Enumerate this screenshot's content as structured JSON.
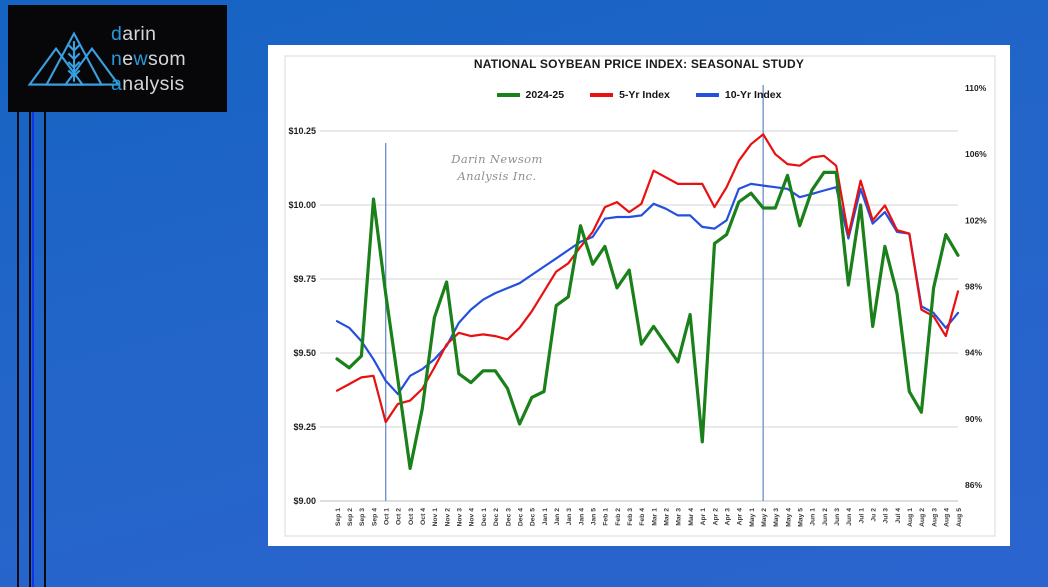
{
  "page": {
    "background_top_color": "#1563c2",
    "background_bottom_color": "#2b64ce",
    "accent_stripe_color": "#0d34ee"
  },
  "logo": {
    "highlight_color": "#2699d8",
    "text_color": "#d6d6d6",
    "mark": "mountain-wheat-triangles-icon",
    "lines": [
      {
        "segments": [
          {
            "t": "d",
            "hl": true
          },
          {
            "t": "arin",
            "hl": false
          }
        ]
      },
      {
        "segments": [
          {
            "t": "n",
            "hl": true
          },
          {
            "t": "e",
            "hl": false
          },
          {
            "t": "w",
            "hl": true
          },
          {
            "t": "som",
            "hl": false
          }
        ]
      },
      {
        "segments": [
          {
            "t": "a",
            "hl": true
          },
          {
            "t": "nalysis",
            "hl": false
          }
        ]
      }
    ]
  },
  "watermark": {
    "line1": "Darin Newsom",
    "line2": "Analysis Inc."
  },
  "chart_data": {
    "type": "line",
    "title": "NATIONAL SOYBEAN PRICE INDEX: SEASONAL STUDY",
    "legend_position": "top",
    "grid": "horizontal",
    "categories": [
      "Sep 1",
      "Sep 2",
      "Sep 3",
      "Sep 4",
      "Oct 1",
      "Oct 2",
      "Oct 3",
      "Oct 4",
      "Nov 1",
      "Nov 2",
      "Nov 3",
      "Nov 4",
      "Dec 1",
      "Dec 2",
      "Dec 3",
      "Dec 4",
      "Dec 5",
      "Jan 1",
      "Jan 2",
      "Jan 3",
      "Jan 4",
      "Jan 5",
      "Feb 1",
      "Feb 2",
      "Feb 3",
      "Feb 4",
      "Mar 1",
      "Mar 2",
      "Mar 3",
      "Mar 4",
      "Apr 1",
      "Apr 2",
      "Apr 3",
      "Apr 4",
      "May 1",
      "May 2",
      "May 3",
      "May 4",
      "May 5",
      "Jun 1",
      "Jun 2",
      "Jun 3",
      "Jun 4",
      "Jul 1",
      "Ju 2",
      "Jul 3",
      "Jul 4",
      "Aug 1",
      "Aug 2",
      "Aug 3",
      "Aug 4",
      "Aug 5"
    ],
    "series": [
      {
        "name": "2024-25",
        "color": "#1a801a",
        "axis": "left",
        "values": [
          9.48,
          9.45,
          9.49,
          10.02,
          9.7,
          9.41,
          9.11,
          9.31,
          9.62,
          9.74,
          9.43,
          9.4,
          9.44,
          9.44,
          9.38,
          9.26,
          9.35,
          9.37,
          9.66,
          9.69,
          9.93,
          9.8,
          9.86,
          9.72,
          9.78,
          9.53,
          9.59,
          9.53,
          9.47,
          9.63,
          9.2,
          9.87,
          9.9,
          10.01,
          10.04,
          9.99,
          9.99,
          10.1,
          9.93,
          10.05,
          10.11,
          10.11,
          9.73,
          10.0,
          9.59,
          9.86,
          9.7,
          9.37,
          9.3,
          9.72,
          9.9,
          9.83
        ]
      },
      {
        "name": "5-Yr Index",
        "color": "#e81010",
        "axis": "right",
        "values": [
          91.7,
          92.1,
          92.5,
          92.6,
          89.8,
          90.9,
          91.1,
          91.8,
          93.1,
          94.5,
          95.2,
          95.0,
          95.1,
          95.0,
          94.8,
          95.5,
          96.5,
          97.7,
          98.9,
          99.4,
          100.4,
          101.3,
          102.8,
          103.1,
          102.5,
          103.0,
          105.0,
          104.6,
          104.2,
          104.2,
          104.2,
          102.8,
          104.0,
          105.6,
          106.6,
          107.2,
          106.0,
          105.4,
          105.3,
          105.8,
          105.9,
          105.3,
          101.1,
          104.4,
          102.0,
          102.9,
          101.4,
          101.2,
          96.6,
          96.2,
          95.0,
          97.7
        ]
      },
      {
        "name": "10-Yr Index",
        "color": "#2450dd",
        "axis": "right",
        "values": [
          95.9,
          95.5,
          94.7,
          93.6,
          92.3,
          91.5,
          92.6,
          93.0,
          93.6,
          94.4,
          95.8,
          96.6,
          97.2,
          97.6,
          97.9,
          98.2,
          98.7,
          99.2,
          99.7,
          100.2,
          100.7,
          101.0,
          102.1,
          102.2,
          102.2,
          102.3,
          103.0,
          102.7,
          102.3,
          102.3,
          101.6,
          101.5,
          102.0,
          103.9,
          104.2,
          104.1,
          104.0,
          103.9,
          103.4,
          103.6,
          103.8,
          104.0,
          100.9,
          103.9,
          101.8,
          102.5,
          101.3,
          101.2,
          96.8,
          96.4,
          95.5,
          96.4
        ]
      }
    ],
    "axes": {
      "left": {
        "unit": "$",
        "min": 9.0,
        "max": 10.25,
        "tick_values": [
          10.25,
          10.0,
          9.75,
          9.5,
          9.25,
          9.0
        ],
        "tick_labels": [
          "$10.25",
          "$10.00",
          "$9.75",
          "$9.50",
          "$9.25",
          "$9.00"
        ]
      },
      "right": {
        "unit": "%",
        "min": 86,
        "max": 110,
        "tick_values": [
          110,
          106,
          102,
          98,
          94,
          90,
          86
        ],
        "tick_labels": [
          "110%",
          "106%",
          "102%",
          "98%",
          "94%",
          "90%",
          "86%"
        ]
      }
    },
    "reference_lines": [
      {
        "category": "Oct 1"
      },
      {
        "category": "May 2"
      }
    ]
  }
}
